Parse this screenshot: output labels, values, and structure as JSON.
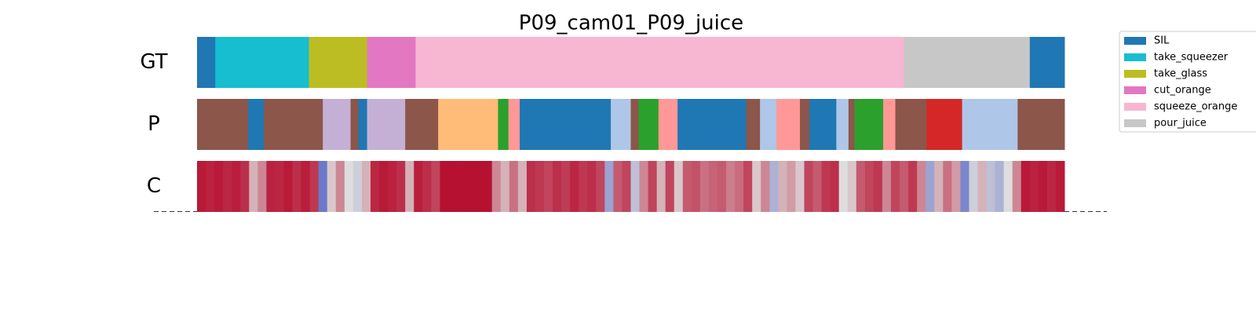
{
  "chart_data": {
    "type": "segmentation",
    "title": "P09_cam01_P09_juice",
    "xlim": [
      0,
      100
    ],
    "classes": [
      {
        "name": "SIL",
        "color": "#1f77b4"
      },
      {
        "name": "take_squeezer",
        "color": "#17becf"
      },
      {
        "name": "take_glass",
        "color": "#bcbd22"
      },
      {
        "name": "cut_orange",
        "color": "#e377c2"
      },
      {
        "name": "squeeze_orange",
        "color": "#f7b6d2"
      },
      {
        "name": "pour_juice",
        "color": "#c7c7c7"
      }
    ],
    "rows": [
      {
        "label": "GT",
        "type": "segments",
        "bounds": [
          0,
          2.1,
          12.9,
          19.6,
          25.2,
          81.5,
          96.0,
          100
        ],
        "classes": [
          0,
          1,
          2,
          3,
          4,
          5,
          0
        ]
      },
      {
        "label": "P",
        "type": "segments",
        "bounds": [
          0,
          5.9,
          7.7,
          14.5,
          17.7,
          18.6,
          19.6,
          24.0,
          27.8,
          34.7,
          35.9,
          37.2,
          47.7,
          50.0,
          50.9,
          53.2,
          55.4,
          63.3,
          64.9,
          66.8,
          69.5,
          70.6,
          73.7,
          75.1,
          75.8,
          79.1,
          80.5,
          84.1,
          88.2,
          94.6,
          100
        ],
        "colors": [
          "#8c564b",
          "#1f77b4",
          "#8c564b",
          "#c5b0d5",
          "#8c564b",
          "#1f77b4",
          "#c5b0d5",
          "#8c564b",
          "#ffbb78",
          "#2ca02c",
          "#ff9896",
          "#1f77b4",
          "#aec7e8",
          "#8c564b",
          "#2ca02c",
          "#ff9896",
          "#1f77b4",
          "#8c564b",
          "#aec7e8",
          "#ff9896",
          "#8c564b",
          "#1f77b4",
          "#aec7e8",
          "#8c564b",
          "#2ca02c",
          "#ff9896",
          "#8c564b",
          "#d62728",
          "#aec7e8",
          "#8c564b"
        ]
      },
      {
        "label": "C",
        "type": "heat",
        "values": [
          0.95,
          0.93,
          0.95,
          0.92,
          0.94,
          0.9,
          0.6,
          0.7,
          0.93,
          0.92,
          0.95,
          0.9,
          0.94,
          0.88,
          0.15,
          0.55,
          0.7,
          0.5,
          0.45,
          0.6,
          0.92,
          0.95,
          0.93,
          0.9,
          0.6,
          0.94,
          0.9,
          0.85,
          0.97,
          0.97,
          0.97,
          0.97,
          0.97,
          0.97,
          0.7,
          0.6,
          0.75,
          0.6,
          0.9,
          0.88,
          0.85,
          0.9,
          0.87,
          0.92,
          0.88,
          0.9,
          0.85,
          0.3,
          0.8,
          0.85,
          0.4,
          0.7,
          0.85,
          0.6,
          0.85,
          0.55,
          0.8,
          0.82,
          0.75,
          0.78,
          0.8,
          0.72,
          0.76,
          0.85,
          0.55,
          0.7,
          0.35,
          0.6,
          0.65,
          0.55,
          0.85,
          0.8,
          0.88,
          0.9,
          0.5,
          0.55,
          0.8,
          0.85,
          0.88,
          0.7,
          0.85,
          0.8,
          0.88,
          0.7,
          0.3,
          0.6,
          0.75,
          0.65,
          0.2,
          0.45,
          0.6,
          0.4,
          0.35,
          0.5,
          0.7,
          0.95,
          0.93,
          0.95,
          0.92,
          0.95
        ]
      }
    ]
  }
}
